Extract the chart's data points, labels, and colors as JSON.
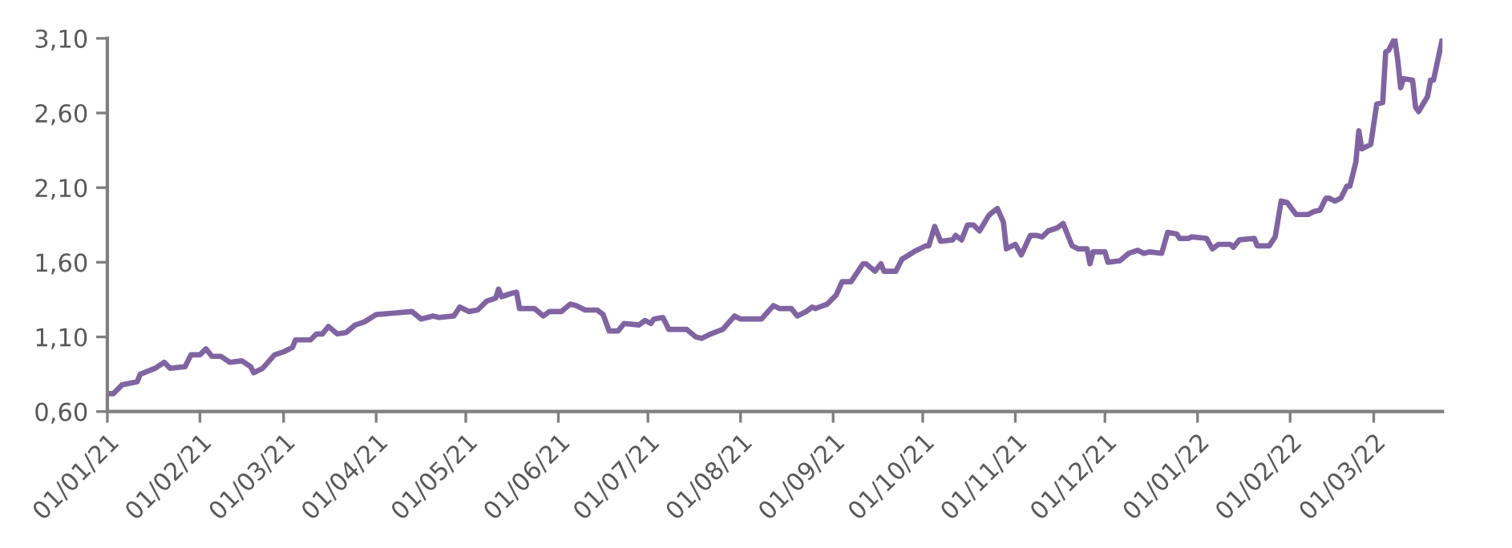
{
  "chart_data": {
    "type": "line",
    "xlim": [
      "2021-01-01",
      "2022-03-24"
    ],
    "ylim": [
      0.6,
      3.1
    ],
    "yticks": [
      {
        "value": 0.6,
        "label": "0,60"
      },
      {
        "value": 1.1,
        "label": "1,10"
      },
      {
        "value": 1.6,
        "label": "1,60"
      },
      {
        "value": 2.1,
        "label": "2,10"
      },
      {
        "value": 2.6,
        "label": "2,60"
      },
      {
        "value": 3.1,
        "label": "3,10"
      }
    ],
    "xticks": [
      {
        "value": "2021-01-01",
        "label": "01/01/21"
      },
      {
        "value": "2021-02-01",
        "label": "01/02/21"
      },
      {
        "value": "2021-03-01",
        "label": "01/03/21"
      },
      {
        "value": "2021-04-01",
        "label": "01/04/21"
      },
      {
        "value": "2021-05-01",
        "label": "01/05/21"
      },
      {
        "value": "2021-06-01",
        "label": "01/06/21"
      },
      {
        "value": "2021-07-01",
        "label": "01/07/21"
      },
      {
        "value": "2021-08-01",
        "label": "01/08/21"
      },
      {
        "value": "2021-09-01",
        "label": "01/09/21"
      },
      {
        "value": "2021-10-01",
        "label": "01/10/21"
      },
      {
        "value": "2021-11-01",
        "label": "01/11/21"
      },
      {
        "value": "2021-12-01",
        "label": "01/12/21"
      },
      {
        "value": "2022-01-01",
        "label": "01/01/22"
      },
      {
        "value": "2022-02-01",
        "label": "01/02/22"
      },
      {
        "value": "2022-03-01",
        "label": "01/03/22"
      }
    ],
    "grid": false,
    "legend": false,
    "marker": "none",
    "line_style": "solid",
    "x": [
      "2021-01-01",
      "2021-01-03",
      "2021-01-06",
      "2021-01-11",
      "2021-01-12",
      "2021-01-17",
      "2021-01-20",
      "2021-01-22",
      "2021-01-27",
      "2021-01-29",
      "2021-02-01",
      "2021-02-03",
      "2021-02-05",
      "2021-02-08",
      "2021-02-11",
      "2021-02-15",
      "2021-02-18",
      "2021-02-19",
      "2021-02-22",
      "2021-02-26",
      "2021-03-01",
      "2021-03-04",
      "2021-03-05",
      "2021-03-10",
      "2021-03-12",
      "2021-03-14",
      "2021-03-16",
      "2021-03-19",
      "2021-03-22",
      "2021-03-25",
      "2021-03-28",
      "2021-04-01",
      "2021-04-07",
      "2021-04-13",
      "2021-04-16",
      "2021-04-20",
      "2021-04-22",
      "2021-04-27",
      "2021-04-29",
      "2021-05-02",
      "2021-05-05",
      "2021-05-08",
      "2021-05-11",
      "2021-05-12",
      "2021-05-13",
      "2021-05-16",
      "2021-05-18",
      "2021-05-19",
      "2021-05-24",
      "2021-05-27",
      "2021-05-29",
      "2021-06-02",
      "2021-06-05",
      "2021-06-07",
      "2021-06-10",
      "2021-06-14",
      "2021-06-16",
      "2021-06-18",
      "2021-06-21",
      "2021-06-23",
      "2021-06-28",
      "2021-06-30",
      "2021-07-02",
      "2021-07-03",
      "2021-07-06",
      "2021-07-08",
      "2021-07-14",
      "2021-07-17",
      "2021-07-19",
      "2021-07-22",
      "2021-07-26",
      "2021-07-30",
      "2021-08-01",
      "2021-08-08",
      "2021-08-12",
      "2021-08-14",
      "2021-08-18",
      "2021-08-20",
      "2021-08-23",
      "2021-08-25",
      "2021-08-26",
      "2021-08-30",
      "2021-09-02",
      "2021-09-04",
      "2021-09-07",
      "2021-09-11",
      "2021-09-12",
      "2021-09-15",
      "2021-09-17",
      "2021-09-18",
      "2021-09-22",
      "2021-09-24",
      "2021-09-28",
      "2021-10-02",
      "2021-10-03",
      "2021-10-05",
      "2021-10-07",
      "2021-10-11",
      "2021-10-12",
      "2021-10-14",
      "2021-10-16",
      "2021-10-18",
      "2021-10-20",
      "2021-10-23",
      "2021-10-24",
      "2021-10-26",
      "2021-10-28",
      "2021-10-29",
      "2021-11-01",
      "2021-11-03",
      "2021-11-06",
      "2021-11-08",
      "2021-11-10",
      "2021-11-12",
      "2021-11-15",
      "2021-11-17",
      "2021-11-20",
      "2021-11-22",
      "2021-11-25",
      "2021-11-26",
      "2021-11-27",
      "2021-12-01",
      "2021-12-02",
      "2021-12-06",
      "2021-12-09",
      "2021-12-12",
      "2021-12-14",
      "2021-12-16",
      "2021-12-20",
      "2021-12-22",
      "2021-12-25",
      "2021-12-26",
      "2021-12-29",
      "2021-12-30",
      "2022-01-04",
      "2022-01-06",
      "2022-01-08",
      "2022-01-12",
      "2022-01-13",
      "2022-01-15",
      "2022-01-20",
      "2022-01-21",
      "2022-01-25",
      "2022-01-27",
      "2022-01-29",
      "2022-01-31",
      "2022-02-03",
      "2022-02-07",
      "2022-02-09",
      "2022-02-11",
      "2022-02-13",
      "2022-02-14",
      "2022-02-16",
      "2022-02-18",
      "2022-02-20",
      "2022-02-21",
      "2022-02-23",
      "2022-02-24",
      "2022-02-25",
      "2022-02-28",
      "2022-03-02",
      "2022-03-04",
      "2022-03-05",
      "2022-03-06",
      "2022-03-08",
      "2022-03-09",
      "2022-03-10",
      "2022-03-11",
      "2022-03-14",
      "2022-03-15",
      "2022-03-16",
      "2022-03-19",
      "2022-03-20",
      "2022-03-21",
      "2022-03-24"
    ],
    "series": [
      {
        "color": "#8064a2",
        "values": [
          0.72,
          0.72,
          0.78,
          0.8,
          0.85,
          0.89,
          0.93,
          0.89,
          0.9,
          0.98,
          0.98,
          1.02,
          0.97,
          0.97,
          0.93,
          0.94,
          0.9,
          0.86,
          0.89,
          0.98,
          1.0,
          1.03,
          1.08,
          1.08,
          1.12,
          1.12,
          1.17,
          1.12,
          1.13,
          1.18,
          1.2,
          1.25,
          1.26,
          1.27,
          1.22,
          1.24,
          1.23,
          1.24,
          1.3,
          1.27,
          1.28,
          1.34,
          1.36,
          1.42,
          1.37,
          1.39,
          1.4,
          1.29,
          1.29,
          1.24,
          1.27,
          1.27,
          1.32,
          1.31,
          1.28,
          1.28,
          1.25,
          1.14,
          1.14,
          1.19,
          1.18,
          1.21,
          1.19,
          1.22,
          1.23,
          1.15,
          1.15,
          1.1,
          1.09,
          1.12,
          1.15,
          1.24,
          1.22,
          1.22,
          1.31,
          1.29,
          1.29,
          1.24,
          1.27,
          1.3,
          1.29,
          1.32,
          1.38,
          1.47,
          1.47,
          1.59,
          1.59,
          1.54,
          1.59,
          1.54,
          1.54,
          1.62,
          1.67,
          1.71,
          1.71,
          1.84,
          1.74,
          1.75,
          1.78,
          1.75,
          1.85,
          1.85,
          1.81,
          1.91,
          1.93,
          1.96,
          1.87,
          1.69,
          1.72,
          1.65,
          1.78,
          1.78,
          1.77,
          1.81,
          1.83,
          1.86,
          1.71,
          1.69,
          1.69,
          1.59,
          1.67,
          1.67,
          1.6,
          1.61,
          1.66,
          1.68,
          1.66,
          1.67,
          1.66,
          1.8,
          1.79,
          1.76,
          1.76,
          1.77,
          1.76,
          1.69,
          1.72,
          1.72,
          1.7,
          1.75,
          1.76,
          1.71,
          1.71,
          1.77,
          2.01,
          2.0,
          1.92,
          1.92,
          1.94,
          1.95,
          2.03,
          2.03,
          2.01,
          2.03,
          2.11,
          2.11,
          2.27,
          2.48,
          2.36,
          2.39,
          2.66,
          2.67,
          3.01,
          3.02,
          3.1,
          2.96,
          2.77,
          2.83,
          2.82,
          2.64,
          2.61,
          2.71,
          2.82,
          2.82,
          3.1
        ]
      }
    ]
  }
}
